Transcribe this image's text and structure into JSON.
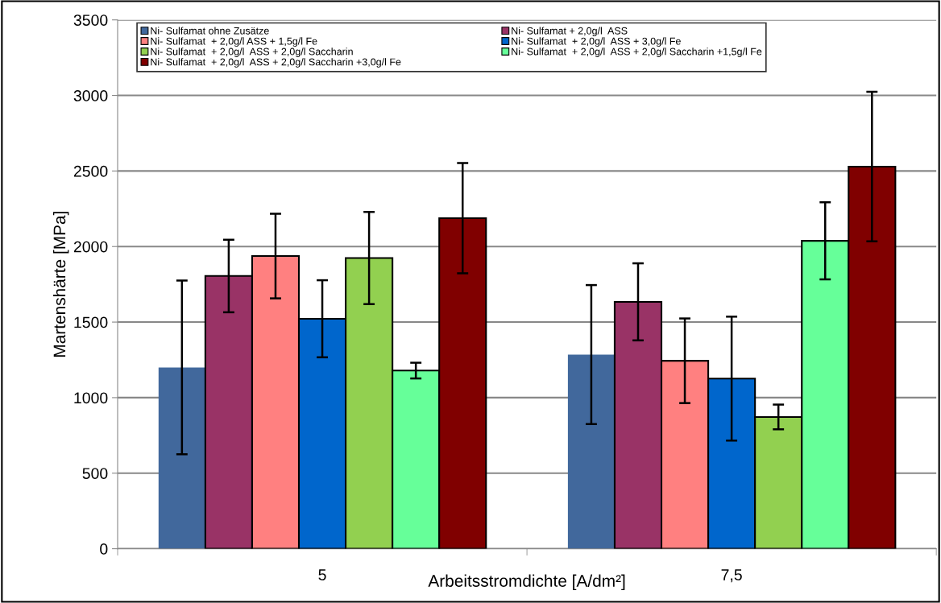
{
  "chart_data": {
    "type": "bar",
    "xlabel": "Arbeitsstromdichte [A/dm²]",
    "ylabel": "Martenshärte [MPa]",
    "categories": [
      "5",
      "7,5"
    ],
    "series": [
      {
        "name": "Ni- Sulfamat ohne Zusätze",
        "color": "#41689c",
        "values": [
          1200,
          1285
        ],
        "errors": [
          575,
          460
        ]
      },
      {
        "name": "Ni- Sulfamat + 2,0g/l  ASS",
        "color": "#993366",
        "values": [
          1805,
          1634
        ],
        "errors": [
          240,
          255
        ]
      },
      {
        "name": "Ni- Sulfamat  + 2,0g/l ASS + 1,5g/l Fe",
        "color": "#ff8080",
        "values": [
          1937,
          1244
        ],
        "errors": [
          280,
          280
        ]
      },
      {
        "name": "Ni- Sulfamat  + 2,0g/l  ASS + 3,0g/l Fe",
        "color": "#0066cc",
        "values": [
          1522,
          1126
        ],
        "errors": [
          255,
          410
        ]
      },
      {
        "name": "Ni- Sulfamat  + 2,0g/l  ASS + 2,0g/l Saccharin",
        "color": "#92d050",
        "values": [
          1924,
          872
        ],
        "errors": [
          305,
          82
        ]
      },
      {
        "name": "Ni- Sulfamat  + 2,0g/l  ASS + 2,0g/l Saccharin +1,5g/l Fe",
        "color": "#66ff99",
        "values": [
          1179,
          2038
        ],
        "errors": [
          52,
          255
        ]
      },
      {
        "name": "Ni- Sulfamat  + 2,0g/l  ASS + 2,0g/l Saccharin +3,0g/l Fe",
        "color": "#800000",
        "values": [
          2188,
          2529
        ],
        "errors": [
          365,
          495
        ]
      }
    ],
    "ylim": [
      0,
      3500
    ],
    "yticks": [
      0,
      500,
      1000,
      1500,
      2000,
      2500,
      3000,
      3500
    ],
    "grid": "y",
    "legend": "top left"
  }
}
